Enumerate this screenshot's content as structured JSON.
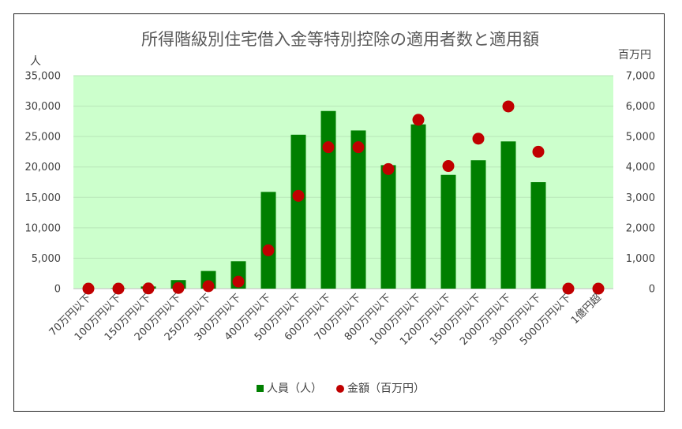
{
  "chart_data": {
    "type": "bar",
    "title": "所得階級別住宅借入金等特別控除の適用者数と適用額",
    "ylabel_left": "人",
    "ylabel_right": "百万円",
    "categories": [
      "70万円以下",
      "100万円以下",
      "150万円以下",
      "200万円以下",
      "250万円以下",
      "300万円以下",
      "400万円以下",
      "500万円以下",
      "600万円以下",
      "700万円以下",
      "800万円以下",
      "1000万円以下",
      "1200万円以下",
      "1500万円以下",
      "2000万円以下",
      "3000万円以下",
      "5000万円以下",
      "1億円超"
    ],
    "ylim_left": [
      0,
      35000
    ],
    "ylim_right": [
      0,
      7000
    ],
    "yticks_left": [
      "0",
      "5,000",
      "10,000",
      "15,000",
      "20,000",
      "25,000",
      "30,000",
      "35,000"
    ],
    "yticks_right": [
      "0",
      "1,000",
      "2,000",
      "3,000",
      "4,000",
      "5,000",
      "6,000",
      "7,000"
    ],
    "grid": true,
    "legend_position": "bottom",
    "series": [
      {
        "name": "人員（人）",
        "type": "bar",
        "axis": "left",
        "color": "#007f00",
        "values": [
          0,
          60,
          350,
          1400,
          2900,
          4500,
          15900,
          25300,
          29200,
          26000,
          20300,
          27000,
          18700,
          21100,
          24200,
          17500,
          0,
          0
        ]
      },
      {
        "name": "金額（百万円）",
        "type": "scatter",
        "axis": "right",
        "color": "#c00000",
        "values": [
          0,
          0,
          5,
          20,
          80,
          230,
          1260,
          3050,
          4650,
          4650,
          3930,
          5550,
          4030,
          4930,
          5990,
          4500,
          0,
          0
        ]
      }
    ]
  }
}
